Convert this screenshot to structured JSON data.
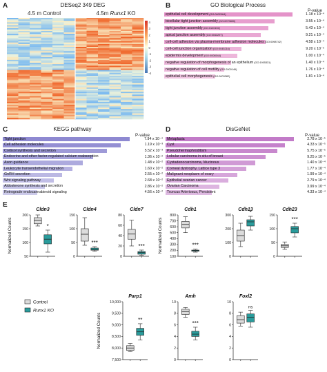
{
  "panel_a": {
    "letter": "A",
    "title": "DESeq2 349 DEG",
    "group_control": "4.5 m Control",
    "group_ko_prefix": "4.5m ",
    "group_ko_gene": "Runx1",
    "group_ko_suffix": " KO",
    "colorbar_ticks": [
      "4",
      "3",
      "2",
      "1",
      "0",
      "-1",
      "-2",
      "-3",
      "-4"
    ]
  },
  "panel_b": {
    "letter": "B",
    "title": "GO Biological Process",
    "pval_header": "P-value",
    "color": "#e493c9",
    "terms": [
      {
        "term": "epithelial cell development",
        "id": "(GO:0002064)",
        "pvalue": "1.18 x 10⁻⁴",
        "score": 1.0
      },
      {
        "term": "bicellular tight junction assembly",
        "id": "(GO:0070830)",
        "pvalue": "3.55 x 10⁻⁴",
        "score": 0.86
      },
      {
        "term": "tight junction assembly",
        "id": "(GO:0120192)",
        "pvalue": "5.43 x 10⁻⁴",
        "score": 0.81
      },
      {
        "term": "apical junction assembly",
        "id": "(GO:0043297)",
        "pvalue": "9.21 x 10⁻⁴",
        "score": 0.75
      },
      {
        "term": "cell-cell adhesion via plasma-membrane adhesion molecules",
        "id": "(GO:0098742)",
        "pvalue": "4.58 x 10⁻⁴",
        "score": 0.79
      },
      {
        "term": "cell-cell junction organization",
        "id": "(GO:0045216)",
        "pvalue": "9.20 x 10⁻⁵",
        "score": 0.6
      },
      {
        "term": "epidermis development",
        "id": "(GO:0008544)",
        "pvalue": "1.00 x 10⁻⁴",
        "score": 0.57
      },
      {
        "term": "negative regulation of morphogenesis of an epithelium",
        "id": "(GO:1905331)",
        "pvalue": "1.40 x 10⁻⁴",
        "score": 0.52
      },
      {
        "term": "negative regulation of cell motility",
        "id": "(GO:2000146)",
        "pvalue": "1.76 x 10⁻⁴",
        "score": 0.47
      },
      {
        "term": "epithelial cell morphogenesis",
        "id": "(GO:0003382)",
        "pvalue": "1.81 x 10⁻⁴",
        "score": 0.4
      }
    ]
  },
  "panel_c": {
    "letter": "C",
    "title": "KEGG pathway",
    "pval_header": "P-value",
    "color": "#8e89d1",
    "terms": [
      {
        "term": "Tight junction",
        "pvalue": "7.94 x 10⁻⁴",
        "score": 1.0
      },
      {
        "term": "Cell adhesion molecules",
        "pvalue": "1.19 x 10⁻³",
        "score": 0.93
      },
      {
        "term": "Cortisol synthesis and secretion",
        "pvalue": "5.52 x 10⁻³",
        "score": 0.82
      },
      {
        "term": "Endocrine and other factor-regulated calcium reabsorption",
        "pvalue": "1.36 x 10⁻²",
        "score": 0.71
      },
      {
        "term": "Axon guidance",
        "pvalue": "1.48 x 10⁻²",
        "score": 0.63
      },
      {
        "term": "Leukocyte transendothelial migration",
        "pvalue": "1.60 x 10⁻²",
        "score": 0.55
      },
      {
        "term": "GnRH secretion",
        "pvalue": "2.55 x 10⁻²",
        "score": 0.47
      },
      {
        "term": "Wnt signaling pathway",
        "pvalue": "2.68 x 10⁻²",
        "score": 0.4
      },
      {
        "term": "Aldosterone synthesis and secretion",
        "pvalue": "2.86 x 10⁻²",
        "score": 0.33
      },
      {
        "term": "Retrograde endocannabinoid signaling",
        "pvalue": "4.56 x 10⁻²",
        "score": 0.27
      }
    ]
  },
  "panel_d": {
    "letter": "D",
    "title": "DisGeNet",
    "pval_header": "P-value",
    "color": "#c27bc8",
    "terms": [
      {
        "term": "Metaplasia",
        "pvalue": "2.78 x 10⁻⁵",
        "score": 1.0
      },
      {
        "term": "Cyst",
        "pvalue": "4.33 x 10⁻⁵",
        "score": 0.93
      },
      {
        "term": "Pseudohermaphroditism",
        "pvalue": "5.75 x 10⁻⁵",
        "score": 0.87
      },
      {
        "term": "Lobular carcinoma in situ of breast",
        "pvalue": "9.25 x 10⁻⁵",
        "score": 0.78
      },
      {
        "term": "Cystadenocarcinoma, Mucinous",
        "pvalue": "1.40 x 10⁻⁴",
        "score": 0.7
      },
      {
        "term": "Corneal dystrophy, Lattice type 3",
        "pvalue": "1.77 x 10⁻⁴",
        "score": 0.63
      },
      {
        "term": "Malignant neoplasm of ovary",
        "pvalue": "1.99 x 10⁻⁴",
        "score": 0.56
      },
      {
        "term": "Epithelial ovarian cancer",
        "pvalue": "2.79 x 10⁻⁴",
        "score": 0.49
      },
      {
        "term": "Ovarian Carcinoma",
        "pvalue": "3.99 x 10⁻⁴",
        "score": 0.42
      },
      {
        "term": "Truncus Arteriosus, Persistent",
        "pvalue": "4.33 x 10⁻⁴",
        "score": 0.36
      }
    ]
  },
  "panel_e": {
    "letter": "E",
    "ylabel": "Normalized Counts",
    "legend": [
      {
        "label": "Control",
        "color": "#dcdcdc"
      },
      {
        "label": "Runx1 KO",
        "color": "#2a9c9c"
      }
    ],
    "colors": {
      "control": "#dcdcdc",
      "ko": "#2a9c9c"
    }
  },
  "chart_data": [
    {
      "type": "box",
      "gene": "Cldn3",
      "yticks": [
        "50",
        "100",
        "150",
        "200"
      ],
      "ylim": [
        50,
        200
      ],
      "sig": "*",
      "control": {
        "min": 160,
        "q1": 168,
        "median": 180,
        "q3": 190,
        "max": 200
      },
      "ko": {
        "min": 65,
        "q1": 95,
        "median": 112,
        "q3": 128,
        "max": 145
      }
    },
    {
      "type": "box",
      "gene": "Cldn4",
      "yticks": [
        "0",
        "50",
        "100",
        "150"
      ],
      "ylim": [
        0,
        150
      ],
      "sig": "***",
      "control": {
        "min": 40,
        "q1": 55,
        "median": 80,
        "q3": 100,
        "max": 140
      },
      "ko": {
        "min": 18,
        "q1": 22,
        "median": 25,
        "q3": 30,
        "max": 35
      }
    },
    {
      "type": "box",
      "gene": "Cldn7",
      "yticks": [
        "0",
        "20",
        "40",
        "60",
        "80"
      ],
      "ylim": [
        0,
        80
      ],
      "sig": "***",
      "control": {
        "min": 20,
        "q1": 33,
        "median": 43,
        "q3": 52,
        "max": 70
      },
      "ko": {
        "min": 2,
        "q1": 4,
        "median": 7,
        "q3": 9,
        "max": 12
      }
    },
    {
      "type": "box",
      "gene": "Cdh1",
      "yticks": [
        "100",
        "200",
        "300",
        "400",
        "500",
        "600",
        "700",
        "800"
      ],
      "ylim": [
        100,
        800
      ],
      "sig": "***",
      "control": {
        "min": 500,
        "q1": 580,
        "median": 640,
        "q3": 690,
        "max": 770
      },
      "ko": {
        "min": 170,
        "q1": 185,
        "median": 195,
        "q3": 205,
        "max": 220
      }
    },
    {
      "type": "box",
      "gene": "Cdh13",
      "yticks": [
        "0",
        "100",
        "200",
        "300"
      ],
      "ylim": [
        0,
        300
      ],
      "sig": "*",
      "control": {
        "min": 70,
        "q1": 110,
        "median": 150,
        "q3": 190,
        "max": 240
      },
      "ko": {
        "min": 190,
        "q1": 220,
        "median": 250,
        "q3": 265,
        "max": 290
      }
    },
    {
      "type": "box",
      "gene": "Cdh23",
      "yticks": [
        "0",
        "50",
        "100",
        "150"
      ],
      "ylim": [
        0,
        150
      ],
      "sig": "***",
      "control": {
        "min": 25,
        "q1": 32,
        "median": 38,
        "q3": 43,
        "max": 52
      },
      "ko": {
        "min": 70,
        "q1": 85,
        "median": 100,
        "q3": 108,
        "max": 120
      }
    },
    {
      "type": "box",
      "gene": "Parp1",
      "yticks": [
        "7,500",
        "8,000",
        "8,500",
        "9,000",
        "9,500",
        "10,000"
      ],
      "ylim": [
        7500,
        10000
      ],
      "sig": "**",
      "control": {
        "min": 7850,
        "q1": 7900,
        "median": 8000,
        "q3": 8100,
        "max": 8200
      },
      "ko": {
        "min": 8350,
        "q1": 8550,
        "median": 8700,
        "q3": 8850,
        "max": 9050
      }
    },
    {
      "type": "box",
      "gene": "Amh",
      "yticks": [
        "0",
        "2",
        "4",
        "6",
        "8",
        "10"
      ],
      "ylim": [
        0,
        10
      ],
      "sig": "***",
      "control": {
        "min": 7.3,
        "q1": 7.8,
        "median": 8.3,
        "q3": 8.7,
        "max": 9.0
      },
      "ko": {
        "min": 3.4,
        "q1": 4.0,
        "median": 4.4,
        "q3": 4.9,
        "max": 5.6
      }
    },
    {
      "type": "box",
      "gene": "Foxl2",
      "yticks": [
        "0",
        "2",
        "4",
        "6",
        "8",
        "10"
      ],
      "ylim": [
        0,
        10
      ],
      "sig": "ns",
      "control": {
        "min": 5.8,
        "q1": 6.3,
        "median": 6.9,
        "q3": 7.6,
        "max": 8.2
      },
      "ko": {
        "min": 5.6,
        "q1": 6.5,
        "median": 7.3,
        "q3": 7.9,
        "max": 8.5
      }
    }
  ]
}
